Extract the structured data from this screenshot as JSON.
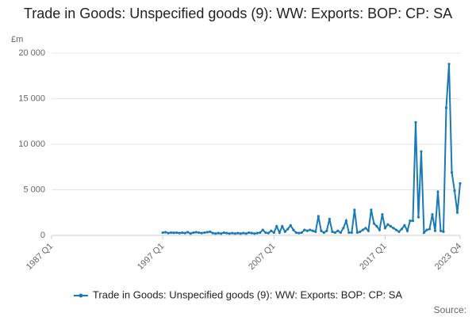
{
  "chart_data": {
    "type": "line",
    "title": "Trade in Goods: Unspecified goods (9): WW: Exports: BOP: CP: SA",
    "y_unit": "£m",
    "source": "Source:",
    "categories": [
      "1987 Q1",
      null,
      null,
      null,
      null,
      null,
      null,
      null,
      null,
      null,
      null,
      null,
      null,
      null,
      null,
      null,
      null,
      null,
      null,
      null,
      null,
      null,
      null,
      null,
      null,
      null,
      null,
      null,
      null,
      null,
      null,
      null,
      null,
      null,
      null,
      null,
      null,
      null,
      null,
      null,
      "1997 Q1",
      null,
      null,
      null,
      null,
      null,
      null,
      null,
      null,
      null,
      null,
      null,
      null,
      null,
      null,
      null,
      null,
      null,
      null,
      null,
      null,
      null,
      null,
      null,
      null,
      null,
      null,
      null,
      null,
      null,
      null,
      null,
      null,
      null,
      null,
      null,
      null,
      null,
      null,
      null,
      "2007 Q1",
      null,
      null,
      null,
      null,
      null,
      null,
      null,
      null,
      null,
      null,
      null,
      null,
      null,
      null,
      null,
      null,
      null,
      null,
      null,
      null,
      null,
      null,
      null,
      null,
      null,
      null,
      null,
      null,
      null,
      null,
      null,
      null,
      null,
      null,
      null,
      null,
      null,
      null,
      null,
      "2017 Q1",
      null,
      null,
      null,
      null,
      null,
      null,
      null,
      null,
      null,
      null,
      null,
      null,
      null,
      null,
      null,
      null,
      null,
      null,
      null,
      null,
      null,
      null,
      null,
      null,
      null,
      null,
      "2023 Q4"
    ],
    "series": [
      {
        "name": "Trade in Goods: Unspecified goods (9): WW: Exports: BOP: CP: SA",
        "color": "#1a7ab5",
        "values": [
          null,
          null,
          null,
          null,
          null,
          null,
          null,
          null,
          null,
          null,
          null,
          null,
          null,
          null,
          null,
          null,
          null,
          null,
          null,
          null,
          null,
          null,
          null,
          null,
          null,
          null,
          null,
          null,
          null,
          null,
          null,
          null,
          null,
          null,
          null,
          null,
          null,
          null,
          null,
          null,
          300,
          350,
          250,
          300,
          280,
          300,
          250,
          300,
          250,
          350,
          200,
          300,
          350,
          300,
          250,
          300,
          350,
          400,
          250,
          200,
          250,
          200,
          300,
          250,
          200,
          250,
          200,
          250,
          200,
          250,
          200,
          300,
          250,
          200,
          250,
          300,
          600,
          300,
          250,
          500,
          300,
          1000,
          300,
          1000,
          400,
          700,
          1100,
          600,
          300,
          250,
          300,
          600,
          500,
          600,
          500,
          400,
          2100,
          500,
          300,
          500,
          1800,
          400,
          300,
          500,
          300,
          800,
          1600,
          300,
          300,
          2800,
          300,
          400,
          600,
          800,
          500,
          2800,
          1300,
          1000,
          600,
          2300,
          800,
          1200,
          1000,
          800,
          600,
          400,
          700,
          1100,
          500,
          1600,
          1600,
          12400,
          2000,
          9200,
          300,
          600,
          700,
          2300,
          500,
          4800,
          500,
          400,
          14000,
          18800,
          6900,
          4900,
          2500,
          5700
        ]
      }
    ],
    "ylim": [
      0,
      20000
    ],
    "yticks": [
      0,
      {
        "value": 5000,
        "label": "5 000"
      },
      {
        "value": 10000,
        "label": "10 000"
      },
      {
        "value": 15000,
        "label": "15 000"
      },
      {
        "value": 20000,
        "label": "20 000"
      }
    ],
    "grid": true
  }
}
